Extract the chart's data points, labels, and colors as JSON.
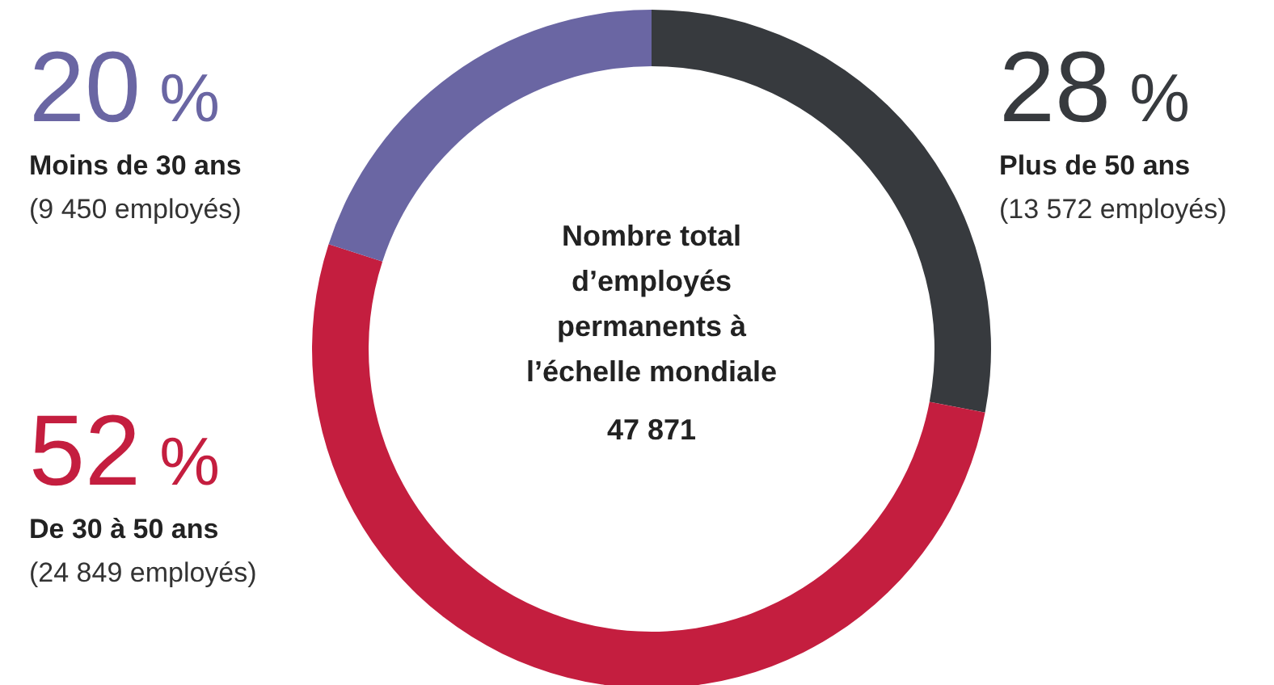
{
  "chart_data": {
    "type": "donut",
    "title": "Nombre total d’employés permanents à l’échelle mondiale",
    "categories": [
      "Plus de 50 ans",
      "De 30 à 50 ans",
      "Moins de 30 ans"
    ],
    "values": [
      28,
      52,
      20
    ],
    "colors": [
      "#373a3e",
      "#c41e3f",
      "#6a66a3"
    ],
    "value_labels": [
      "28 %",
      "52 %",
      "20 %"
    ],
    "annotations": [
      "(13 572 employés)",
      "(24 849 employés)",
      "(9 450 employés)",
      "47 871"
    ]
  }
}
